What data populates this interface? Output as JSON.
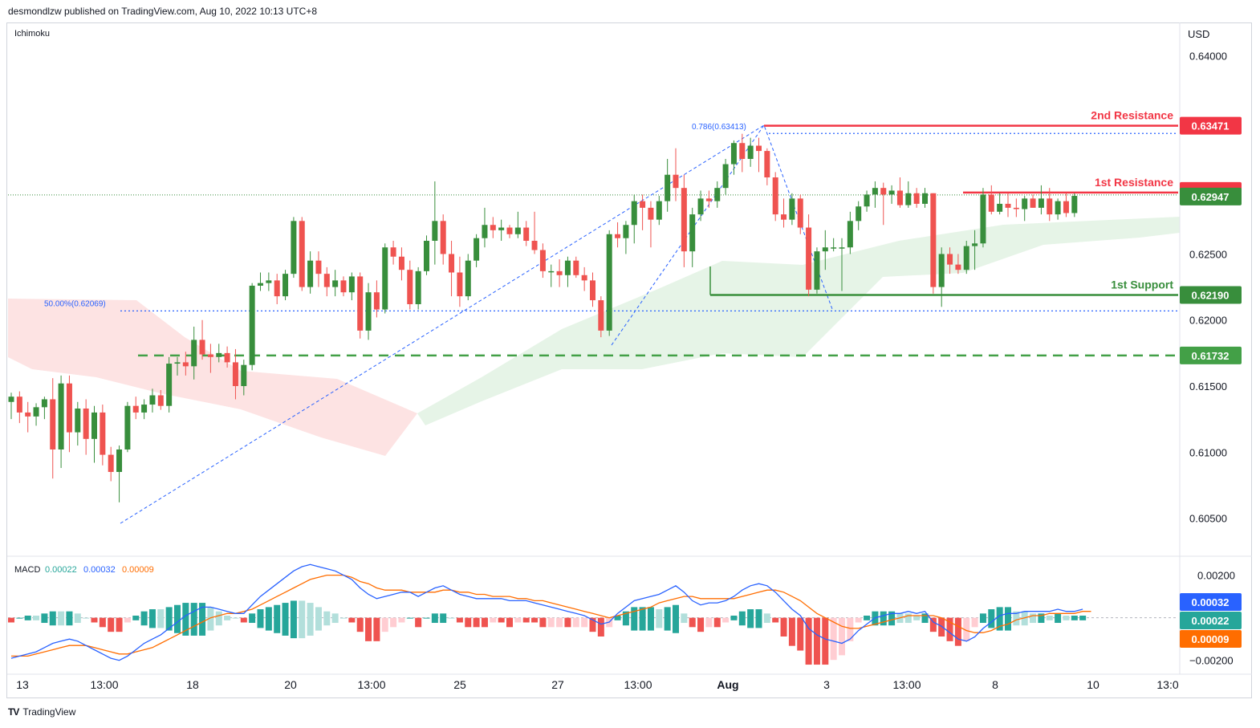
{
  "header": {
    "publish_line": "desmondlzw published on TradingView.com, Aug 10, 2022 10:13 UTC+8"
  },
  "footer": {
    "brand": "TradingView"
  },
  "colors": {
    "up": "#26a69a",
    "up_candle": "#388e3c",
    "down": "#ef5350",
    "resistance": "#f23645",
    "support": "#388e3c",
    "fib": "#2962ff",
    "macd_line": "#2962ff",
    "signal_line": "#ff6d00",
    "cloud_bear": "#fde3e3",
    "cloud_bull": "#e6f4e7"
  },
  "chart_data": {
    "type": "candlestick",
    "indicator_label": "Ichimoku",
    "currency": "USD",
    "price_axis": {
      "ticks": [
        "0.64000",
        "0.63500",
        "0.63000",
        "0.62500",
        "0.62000",
        "0.61500",
        "0.61000",
        "0.60500"
      ],
      "tick_values": [
        0.64,
        0.635,
        0.63,
        0.625,
        0.62,
        0.615,
        0.61,
        0.605
      ],
      "range": [
        0.6023,
        0.6418
      ]
    },
    "time_axis": {
      "labels": [
        "13",
        "13:00",
        "18",
        "20",
        "13:00",
        "25",
        "27",
        "13:00",
        "Aug",
        "3",
        "13:00",
        "8",
        "10",
        "13:0"
      ],
      "bold_labels": [
        "Aug"
      ]
    },
    "levels": [
      {
        "name": "2nd Resistance",
        "label": "2nd Resistance",
        "value": "0.63471",
        "price": 0.63471,
        "color": "#f23645"
      },
      {
        "name": "1st Resistance",
        "label": "1st Resistance",
        "value": "0.62965",
        "price": 0.62965,
        "color": "#f23645"
      },
      {
        "name": "1st Support",
        "label": "1st Support",
        "value": "0.62190",
        "price": 0.6219,
        "color": "#388e3c"
      },
      {
        "name": "dashed support",
        "label": "",
        "value": "0.61732",
        "price": 0.61732,
        "color": "#43a047"
      }
    ],
    "last_price": {
      "value": "0.62947",
      "price": 0.62947
    },
    "fib_labels": [
      {
        "text": "0.786(0.63413)",
        "price": 0.63413
      },
      {
        "text": "50.00%(0.62069)",
        "price": 0.62069
      }
    ],
    "candles": [
      [
        0.6138,
        0.6145,
        0.6125,
        0.6142
      ],
      [
        0.6142,
        0.6146,
        0.6122,
        0.613
      ],
      [
        0.613,
        0.6138,
        0.6115,
        0.6127
      ],
      [
        0.6127,
        0.6137,
        0.612,
        0.6134
      ],
      [
        0.6134,
        0.6142,
        0.6125,
        0.614
      ],
      [
        0.614,
        0.6156,
        0.608,
        0.6102
      ],
      [
        0.6102,
        0.6158,
        0.6088,
        0.6152
      ],
      [
        0.6152,
        0.6158,
        0.61,
        0.6115
      ],
      [
        0.6115,
        0.6138,
        0.6105,
        0.6133
      ],
      [
        0.6133,
        0.614,
        0.6098,
        0.611
      ],
      [
        0.611,
        0.6135,
        0.6092,
        0.613
      ],
      [
        0.613,
        0.6136,
        0.609,
        0.6098
      ],
      [
        0.6098,
        0.6104,
        0.6078,
        0.6085
      ],
      [
        0.6085,
        0.6105,
        0.6062,
        0.6102
      ],
      [
        0.6102,
        0.6138,
        0.61,
        0.6135
      ],
      [
        0.6135,
        0.6142,
        0.6125,
        0.613
      ],
      [
        0.613,
        0.614,
        0.6125,
        0.6136
      ],
      [
        0.6136,
        0.6148,
        0.613,
        0.6143
      ],
      [
        0.6143,
        0.6147,
        0.6132,
        0.6135
      ],
      [
        0.6135,
        0.6172,
        0.613,
        0.6167
      ],
      [
        0.6167,
        0.6172,
        0.6158,
        0.6168
      ],
      [
        0.6168,
        0.6176,
        0.6158,
        0.6165
      ],
      [
        0.6165,
        0.6195,
        0.6155,
        0.6185
      ],
      [
        0.6185,
        0.62,
        0.617,
        0.6174
      ],
      [
        0.6174,
        0.6182,
        0.616,
        0.6172
      ],
      [
        0.6172,
        0.6182,
        0.6168,
        0.6175
      ],
      [
        0.6175,
        0.618,
        0.6164,
        0.6168
      ],
      [
        0.6168,
        0.6178,
        0.614,
        0.615
      ],
      [
        0.615,
        0.617,
        0.6143,
        0.6166
      ],
      [
        0.6166,
        0.6228,
        0.6162,
        0.6226
      ],
      [
        0.6226,
        0.6236,
        0.6222,
        0.6228
      ],
      [
        0.6228,
        0.6236,
        0.6222,
        0.623
      ],
      [
        0.623,
        0.6235,
        0.6212,
        0.6218
      ],
      [
        0.6218,
        0.6238,
        0.6215,
        0.6235
      ],
      [
        0.6235,
        0.6278,
        0.6232,
        0.6275
      ],
      [
        0.6275,
        0.6278,
        0.6222,
        0.6225
      ],
      [
        0.6225,
        0.6252,
        0.622,
        0.6245
      ],
      [
        0.6245,
        0.6252,
        0.6225,
        0.6235
      ],
      [
        0.6235,
        0.624,
        0.6218,
        0.6225
      ],
      [
        0.6225,
        0.6238,
        0.6218,
        0.623
      ],
      [
        0.623,
        0.6233,
        0.6218,
        0.6221
      ],
      [
        0.6221,
        0.6236,
        0.6215,
        0.6233
      ],
      [
        0.6233,
        0.6236,
        0.6186,
        0.6192
      ],
      [
        0.6192,
        0.6228,
        0.6185,
        0.6221
      ],
      [
        0.6221,
        0.623,
        0.6202,
        0.6208
      ],
      [
        0.6208,
        0.6258,
        0.6205,
        0.6255
      ],
      [
        0.6255,
        0.626,
        0.6242,
        0.6248
      ],
      [
        0.6248,
        0.6255,
        0.623,
        0.6238
      ],
      [
        0.6238,
        0.6245,
        0.6208,
        0.6212
      ],
      [
        0.6212,
        0.624,
        0.6208,
        0.6237
      ],
      [
        0.6237,
        0.6264,
        0.6234,
        0.626
      ],
      [
        0.626,
        0.6305,
        0.6242,
        0.6275
      ],
      [
        0.6275,
        0.628,
        0.6242,
        0.625
      ],
      [
        0.625,
        0.626,
        0.6218,
        0.6236
      ],
      [
        0.6236,
        0.6248,
        0.621,
        0.6218
      ],
      [
        0.6218,
        0.625,
        0.6215,
        0.6245
      ],
      [
        0.6245,
        0.6265,
        0.624,
        0.6262
      ],
      [
        0.6262,
        0.6285,
        0.6255,
        0.6272
      ],
      [
        0.6272,
        0.6278,
        0.6262,
        0.6268
      ],
      [
        0.6268,
        0.6276,
        0.626,
        0.627
      ],
      [
        0.627,
        0.6272,
        0.6262,
        0.6265
      ],
      [
        0.6265,
        0.6282,
        0.6262,
        0.627
      ],
      [
        0.627,
        0.6275,
        0.6256,
        0.626
      ],
      [
        0.626,
        0.6282,
        0.625,
        0.6253
      ],
      [
        0.6253,
        0.6258,
        0.6232,
        0.6237
      ],
      [
        0.6237,
        0.6242,
        0.6225,
        0.6237
      ],
      [
        0.6237,
        0.6246,
        0.6225,
        0.6234
      ],
      [
        0.6234,
        0.6248,
        0.6225,
        0.6245
      ],
      [
        0.6245,
        0.6248,
        0.6232,
        0.6234
      ],
      [
        0.6234,
        0.624,
        0.6222,
        0.623
      ],
      [
        0.623,
        0.6236,
        0.621,
        0.6215
      ],
      [
        0.6215,
        0.6218,
        0.6187,
        0.6192
      ],
      [
        0.6192,
        0.6268,
        0.6188,
        0.6265
      ],
      [
        0.6265,
        0.6274,
        0.6255,
        0.6262
      ],
      [
        0.6262,
        0.6275,
        0.625,
        0.6272
      ],
      [
        0.6272,
        0.6295,
        0.6258,
        0.629
      ],
      [
        0.629,
        0.6295,
        0.6268,
        0.6285
      ],
      [
        0.6285,
        0.629,
        0.6255,
        0.6276
      ],
      [
        0.6276,
        0.6294,
        0.6272,
        0.629
      ],
      [
        0.629,
        0.6322,
        0.6282,
        0.631
      ],
      [
        0.631,
        0.633,
        0.629,
        0.63
      ],
      [
        0.63,
        0.631,
        0.624,
        0.6252
      ],
      [
        0.6252,
        0.6285,
        0.624,
        0.628
      ],
      [
        0.628,
        0.6298,
        0.6275,
        0.6292
      ],
      [
        0.6292,
        0.6298,
        0.6285,
        0.629
      ],
      [
        0.629,
        0.6305,
        0.6285,
        0.63
      ],
      [
        0.63,
        0.6322,
        0.6295,
        0.6318
      ],
      [
        0.6318,
        0.6336,
        0.631,
        0.6334
      ],
      [
        0.6334,
        0.6341,
        0.6312,
        0.6322
      ],
      [
        0.6322,
        0.6338,
        0.6316,
        0.6332
      ],
      [
        0.6332,
        0.6338,
        0.6312,
        0.6328
      ],
      [
        0.6328,
        0.633,
        0.6302,
        0.6308
      ],
      [
        0.6308,
        0.6312,
        0.6275,
        0.628
      ],
      [
        0.628,
        0.6292,
        0.627,
        0.6276
      ],
      [
        0.6276,
        0.6296,
        0.6272,
        0.6292
      ],
      [
        0.6292,
        0.6295,
        0.6265,
        0.627
      ],
      [
        0.627,
        0.628,
        0.6218,
        0.6223
      ],
      [
        0.6223,
        0.6255,
        0.622,
        0.6252
      ],
      [
        0.6252,
        0.6268,
        0.6238,
        0.6255
      ],
      [
        0.6255,
        0.6262,
        0.6252,
        0.6255
      ],
      [
        0.6255,
        0.6262,
        0.6222,
        0.6255
      ],
      [
        0.6255,
        0.6282,
        0.625,
        0.6275
      ],
      [
        0.6275,
        0.629,
        0.6268,
        0.6286
      ],
      [
        0.6286,
        0.6298,
        0.6282,
        0.6295
      ],
      [
        0.6295,
        0.6305,
        0.6285,
        0.63
      ],
      [
        0.63,
        0.6304,
        0.6272,
        0.6295
      ],
      [
        0.6295,
        0.6302,
        0.6288,
        0.6298
      ],
      [
        0.6298,
        0.6308,
        0.6285,
        0.6287
      ],
      [
        0.6287,
        0.6305,
        0.6285,
        0.6296
      ],
      [
        0.6296,
        0.63,
        0.6285,
        0.6288
      ],
      [
        0.6288,
        0.63,
        0.6285,
        0.6296
      ],
      [
        0.6296,
        0.6296,
        0.622,
        0.6225
      ],
      [
        0.6225,
        0.6255,
        0.621,
        0.625
      ],
      [
        0.625,
        0.6255,
        0.6235,
        0.6242
      ],
      [
        0.6242,
        0.625,
        0.6235,
        0.6238
      ],
      [
        0.6238,
        0.626,
        0.6235,
        0.6256
      ],
      [
        0.6256,
        0.6268,
        0.6238,
        0.6258
      ],
      [
        0.6258,
        0.63,
        0.6255,
        0.6295
      ],
      [
        0.6295,
        0.6302,
        0.628,
        0.6282
      ],
      [
        0.6282,
        0.6296,
        0.628,
        0.6288
      ],
      [
        0.6288,
        0.6296,
        0.6278,
        0.6285
      ],
      [
        0.6285,
        0.6292,
        0.6278,
        0.6284
      ],
      [
        0.6284,
        0.6294,
        0.6275,
        0.6292
      ],
      [
        0.6292,
        0.6295,
        0.6285,
        0.6285
      ],
      [
        0.6285,
        0.6302,
        0.628,
        0.6292
      ],
      [
        0.6292,
        0.63,
        0.6275,
        0.628
      ],
      [
        0.628,
        0.6292,
        0.6276,
        0.629
      ],
      [
        0.629,
        0.6296,
        0.6278,
        0.6281
      ],
      [
        0.6281,
        0.6296,
        0.6278,
        0.6294
      ]
    ],
    "macd": {
      "label": "MACD",
      "values": [
        "0.00022",
        "0.00032",
        "0.00009"
      ],
      "axis_ticks": [
        "0.00200",
        "−0.00200"
      ],
      "axis_values": [
        0.002,
        -0.002
      ],
      "range": [
        -0.0025,
        0.0027
      ],
      "line_now": "0.00032",
      "signal_now": "0.00009",
      "hist_now": "0.00022",
      "macd_line": [
        -0.0019,
        -0.0018,
        -0.0017,
        -0.0016,
        -0.0014,
        -0.0012,
        -0.0011,
        -0.001,
        -0.0011,
        -0.0013,
        -0.0015,
        -0.0017,
        -0.0019,
        -0.002,
        -0.0018,
        -0.0015,
        -0.0012,
        -0.001,
        -0.0008,
        -0.0005,
        -0.0002,
        0.0001,
        0.0003,
        0.0005,
        0.0005,
        0.0004,
        0.0003,
        0.0002,
        0.0002,
        0.0006,
        0.001,
        0.0013,
        0.0016,
        0.0019,
        0.0022,
        0.0024,
        0.0025,
        0.0024,
        0.0023,
        0.0022,
        0.002,
        0.0018,
        0.0014,
        0.0011,
        0.0009,
        0.001,
        0.0011,
        0.0012,
        0.0012,
        0.001,
        0.0012,
        0.0014,
        0.0015,
        0.0013,
        0.0011,
        0.001,
        0.0009,
        0.0009,
        0.0009,
        0.0009,
        0.0008,
        0.0008,
        0.0008,
        0.0007,
        0.0006,
        0.0005,
        0.0004,
        0.0003,
        0.0002,
        0.0001,
        -0.0001,
        -0.0003,
        -0.0002,
        0.0002,
        0.0005,
        0.0008,
        0.0009,
        0.001,
        0.0011,
        0.0013,
        0.0015,
        0.0012,
        0.0008,
        0.0006,
        0.0007,
        0.0007,
        0.0008,
        0.001,
        0.0013,
        0.0015,
        0.0016,
        0.0015,
        0.0012,
        0.0008,
        0.0004,
        0.0001,
        -0.0005,
        -0.0008,
        -0.001,
        -0.0011,
        -0.0012,
        -0.001,
        -0.0006,
        -0.0003,
        0.0,
        0.0001,
        0.0002,
        0.0002,
        0.0003,
        0.0002,
        0.0003,
        -0.0002,
        -0.0004,
        -0.0007,
        -0.001,
        -0.0011,
        -0.0009,
        -0.0005,
        -0.0002,
        0.0001,
        0.0002,
        0.0002,
        0.0003,
        0.0003,
        0.0003,
        0.0003,
        0.0004,
        0.0003,
        0.0003,
        0.0004
      ],
      "signal_line": [
        -0.0018,
        -0.0018,
        -0.0018,
        -0.0017,
        -0.0016,
        -0.0015,
        -0.0014,
        -0.0013,
        -0.0013,
        -0.0013,
        -0.0014,
        -0.0015,
        -0.0016,
        -0.0017,
        -0.0017,
        -0.0016,
        -0.0015,
        -0.0014,
        -0.0012,
        -0.001,
        -0.0008,
        -0.0006,
        -0.0004,
        -0.0002,
        0.0,
        0.0001,
        0.0002,
        0.0002,
        0.0003,
        0.0004,
        0.0006,
        0.0008,
        0.001,
        0.0012,
        0.0014,
        0.0016,
        0.0018,
        0.0019,
        0.002,
        0.002,
        0.002,
        0.0019,
        0.0017,
        0.0016,
        0.0014,
        0.0013,
        0.0013,
        0.0013,
        0.0012,
        0.0012,
        0.0012,
        0.0012,
        0.0013,
        0.0013,
        0.0012,
        0.0012,
        0.0011,
        0.0011,
        0.001,
        0.001,
        0.001,
        0.0009,
        0.0009,
        0.0008,
        0.0008,
        0.0007,
        0.0006,
        0.0005,
        0.0004,
        0.0003,
        0.0002,
        0.0001,
        0.0,
        0.0001,
        0.0002,
        0.0003,
        0.0004,
        0.0005,
        0.0007,
        0.0008,
        0.0009,
        0.001,
        0.001,
        0.0009,
        0.0009,
        0.0009,
        0.0009,
        0.0009,
        0.001,
        0.0011,
        0.0012,
        0.0013,
        0.0013,
        0.0012,
        0.001,
        0.0008,
        0.0005,
        0.0002,
        0.0,
        -0.0002,
        -0.0004,
        -0.0005,
        -0.0005,
        -0.0004,
        -0.0003,
        -0.0002,
        -0.0001,
        0.0,
        0.0001,
        0.0001,
        0.0001,
        0.0001,
        0.0,
        -0.0002,
        -0.0004,
        -0.0006,
        -0.0007,
        -0.0007,
        -0.0006,
        -0.0004,
        -0.0003,
        -0.0001,
        0.0,
        0.0001,
        0.0001,
        0.0002,
        0.0002,
        0.0002,
        0.0002,
        0.0003,
        0.0003
      ]
    }
  }
}
